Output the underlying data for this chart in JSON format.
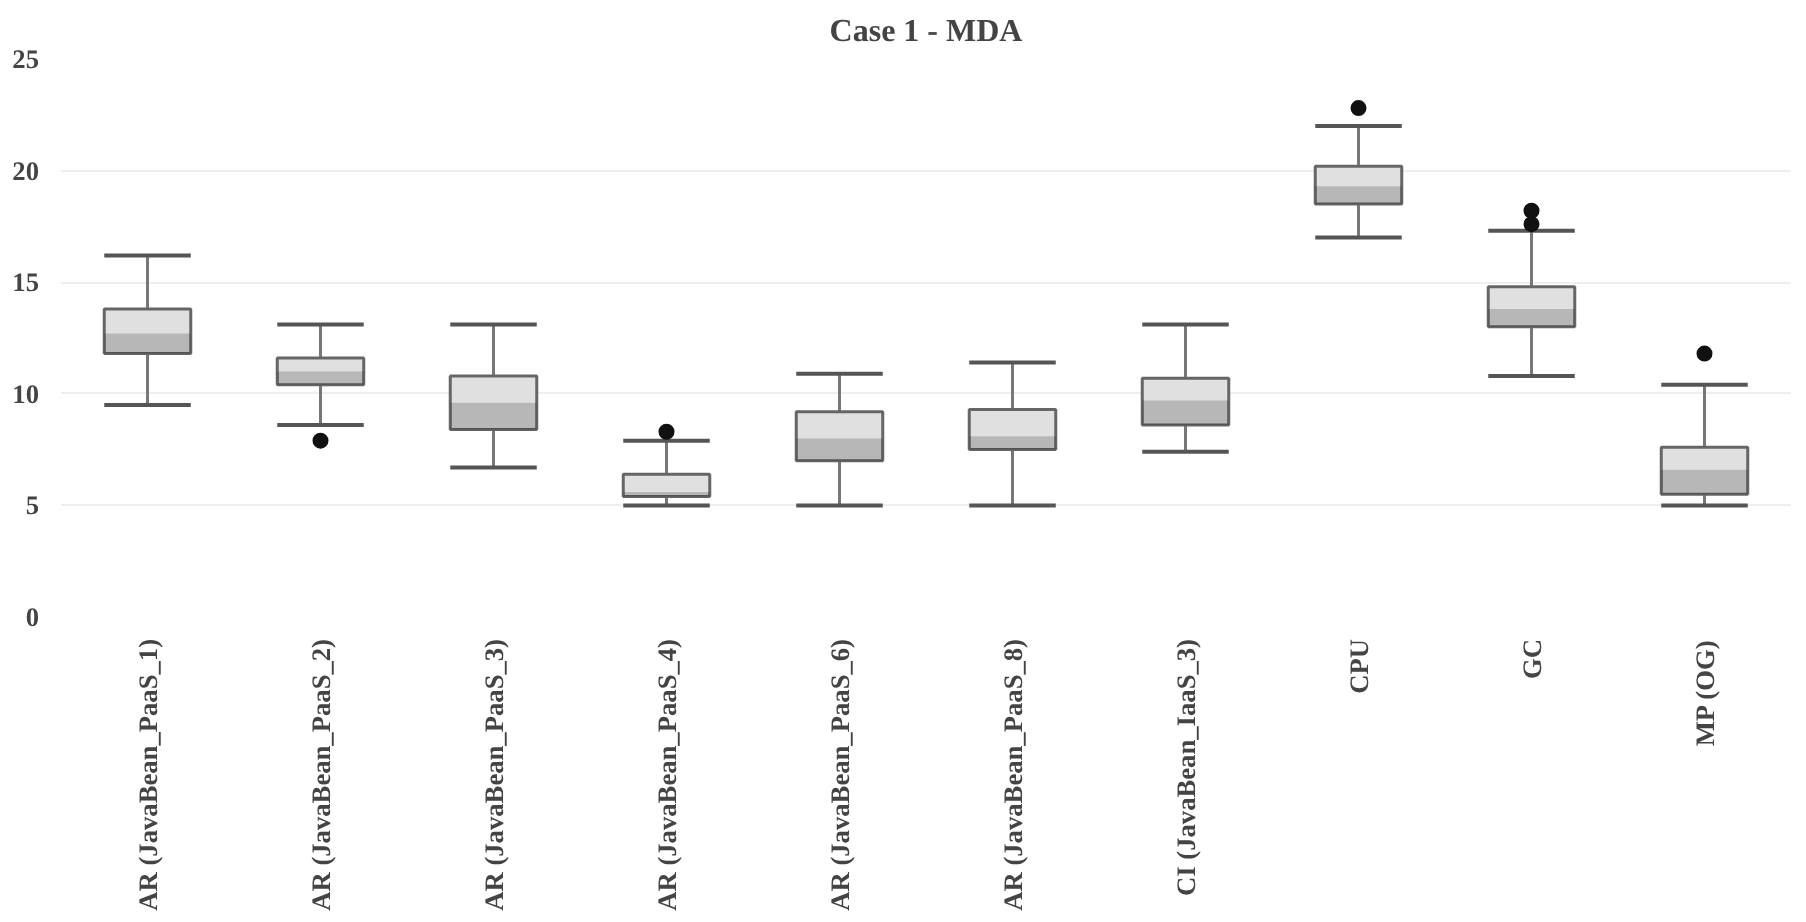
{
  "chart_data": {
    "type": "box",
    "title": "Case 1 - MDA",
    "categories": [
      "AR (JavaBean_PaaS_1)",
      "AR (JavaBean_PaaS_2)",
      "AR (JavaBean_PaaS_3)",
      "AR (JavaBean_PaaS_4)",
      "AR (JavaBean_PaaS_6)",
      "AR (JavaBean_PaaS_8)",
      "CI (JavaBean_IaaS_3)",
      "CPU",
      "GC",
      "MP (OG)"
    ],
    "boxes": [
      {
        "low": 9.5,
        "q1": 11.8,
        "median": 12.7,
        "q3": 13.8,
        "high": 16.2
      },
      {
        "low": 8.6,
        "q1": 10.4,
        "median": 11.0,
        "q3": 11.6,
        "high": 13.1,
        "outliers": [
          7.9
        ]
      },
      {
        "low": 6.7,
        "q1": 8.4,
        "median": 9.6,
        "q3": 10.8,
        "high": 13.1
      },
      {
        "low": 5.0,
        "q1": 5.4,
        "median": 5.6,
        "q3": 6.4,
        "high": 7.9,
        "outliers": [
          8.3
        ]
      },
      {
        "low": 5.0,
        "q1": 7.0,
        "median": 8.0,
        "q3": 9.2,
        "high": 10.9
      },
      {
        "low": 5.0,
        "q1": 7.5,
        "median": 8.1,
        "q3": 9.3,
        "high": 11.4
      },
      {
        "low": 7.4,
        "q1": 8.6,
        "median": 9.7,
        "q3": 10.7,
        "high": 13.1
      },
      {
        "low": 17.0,
        "q1": 18.5,
        "median": 19.3,
        "q3": 20.2,
        "high": 22.0,
        "outliers": [
          22.8
        ]
      },
      {
        "low": 10.8,
        "q1": 13.0,
        "median": 13.8,
        "q3": 14.8,
        "high": 17.3,
        "outliers": [
          17.6,
          18.2
        ]
      },
      {
        "low": 5.0,
        "q1": 5.5,
        "median": 6.6,
        "q3": 7.6,
        "high": 10.4,
        "outliers": [
          11.8
        ]
      }
    ],
    "colors": [
      "#e0e0e0",
      "#e0e0e0",
      "#e0e0e0",
      "#e0e0e0",
      "#e0e0e0",
      "#e0e0e0",
      "#e0e0e0",
      "#e0e0e0",
      "#e0e0e0",
      "#e0e0e0"
    ],
    "ylim": [
      0,
      25
    ],
    "yticks": [
      0,
      5,
      10,
      15,
      20,
      25
    ],
    "grid": "y"
  }
}
